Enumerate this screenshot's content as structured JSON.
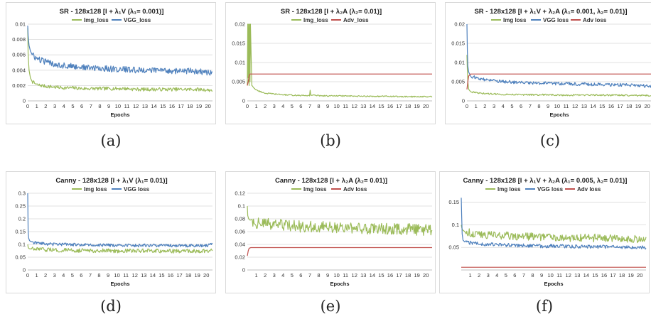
{
  "chart_data": [
    {
      "id": "a",
      "caption": "(a)",
      "type": "line",
      "title": "SR - 128x128  [I + λ₁V (λ₁= 0.001)]",
      "xlabel": "Epochs",
      "ylabel": "",
      "xlim": [
        0,
        20.5
      ],
      "ylim": [
        0,
        0.01
      ],
      "yticks": [
        0,
        0.002,
        0.004,
        0.006,
        0.008,
        0.01
      ],
      "yticklabels": [
        "0",
        "0.002",
        "0.004",
        "0.006",
        "0.008",
        "0.01"
      ],
      "xticks": [
        0,
        1,
        2,
        3,
        4,
        5,
        6,
        7,
        8,
        9,
        10,
        11,
        12,
        13,
        14,
        15,
        16,
        17,
        18,
        19,
        20
      ],
      "grid": true,
      "legend_position": "top",
      "series": [
        {
          "name": "Img_loss",
          "color": "#9bbb59",
          "x": [
            0,
            0.05,
            0.15,
            0.3,
            0.5,
            1,
            2,
            3,
            4,
            5,
            6,
            7,
            8,
            9,
            10,
            11,
            12,
            13,
            14,
            15,
            16,
            17,
            18,
            19,
            20,
            20.5
          ],
          "y": [
            0.0095,
            0.006,
            0.004,
            0.003,
            0.0025,
            0.0021,
            0.0019,
            0.0018,
            0.0017,
            0.0017,
            0.0016,
            0.0016,
            0.0016,
            0.0016,
            0.0016,
            0.0016,
            0.0015,
            0.0015,
            0.0015,
            0.0015,
            0.0015,
            0.0015,
            0.0015,
            0.0015,
            0.0014,
            0.0014
          ],
          "noise": 0.00022
        },
        {
          "name": "VGG_loss",
          "color": "#4f81bd",
          "x": [
            0,
            0.05,
            0.15,
            0.3,
            0.5,
            1,
            2,
            3,
            4,
            5,
            6,
            7,
            8,
            9,
            10,
            11,
            12,
            13,
            14,
            15,
            16,
            17,
            18,
            19,
            20,
            20.5
          ],
          "y": [
            0.0098,
            0.0085,
            0.0072,
            0.0065,
            0.006,
            0.0055,
            0.0051,
            0.0048,
            0.0046,
            0.0045,
            0.0044,
            0.0043,
            0.0042,
            0.0042,
            0.0041,
            0.0041,
            0.004,
            0.004,
            0.004,
            0.004,
            0.0039,
            0.0039,
            0.0039,
            0.0038,
            0.0037,
            0.0036
          ],
          "noise": 0.0004
        }
      ]
    },
    {
      "id": "b",
      "caption": "(b)",
      "type": "line",
      "title": "SR - 128x128  [I + λ₂A (λ₂= 0.01)]",
      "xlabel": "",
      "ylabel": "",
      "xlim": [
        0,
        20.7
      ],
      "ylim": [
        0,
        0.02
      ],
      "yticks": [
        0,
        0.005,
        0.01,
        0.015,
        0.02
      ],
      "yticklabels": [
        "0",
        "0.005",
        "0.01",
        "0.015",
        "0.02"
      ],
      "xticks": [
        0,
        1,
        2,
        3,
        4,
        5,
        6,
        7,
        8,
        9,
        10,
        11,
        12,
        13,
        14,
        15,
        16,
        17,
        18,
        19,
        20
      ],
      "grid": true,
      "legend_position": "top",
      "series": [
        {
          "name": "Img_loss",
          "color": "#9bbb59",
          "x": [
            0,
            0.05,
            0.1,
            0.15,
            0.2,
            0.25,
            0.3,
            0.35,
            0.5,
            1,
            2,
            3,
            4,
            5,
            6,
            7,
            7.05,
            7.1,
            8,
            9,
            10,
            11,
            12,
            13,
            14,
            15,
            16,
            17,
            18,
            19,
            20,
            20.7
          ],
          "y": [
            0.004,
            0.02,
            0.006,
            0.02,
            0.004,
            0.02,
            0.005,
            0.02,
            0.004,
            0.0028,
            0.002,
            0.0018,
            0.0016,
            0.0015,
            0.0014,
            0.0014,
            0.0033,
            0.0015,
            0.0014,
            0.0013,
            0.0013,
            0.0013,
            0.0012,
            0.0012,
            0.0012,
            0.0012,
            0.0012,
            0.0011,
            0.0011,
            0.0011,
            0.0011,
            0.0011
          ],
          "noise": 0.00015
        },
        {
          "name": "Adv_loss",
          "color": "#c0504d",
          "x": [
            0,
            0.1,
            0.2,
            0.3,
            20.7
          ],
          "y": [
            0.004,
            0.005,
            0.0065,
            0.007,
            0.007
          ],
          "noise": 0
        }
      ]
    },
    {
      "id": "c",
      "caption": "(c)",
      "type": "line",
      "title": "SR - 128x128  [I + λ₁V + λ₂A (λ₁= 0.001, λ₂= 0.01)]",
      "xlabel": "Epochs",
      "ylabel": "",
      "xlim": [
        0,
        20.5
      ],
      "ylim": [
        0,
        0.02
      ],
      "yticks": [
        0,
        0.005,
        0.01,
        0.015,
        0.02
      ],
      "yticklabels": [
        "0",
        "0.005",
        "0.01",
        "0.015",
        "0.02"
      ],
      "xticks": [
        0,
        1,
        2,
        3,
        4,
        5,
        6,
        7,
        8,
        9,
        10,
        11,
        12,
        13,
        14,
        15,
        16,
        17,
        18,
        19,
        20
      ],
      "grid": true,
      "legend_position": "top",
      "series": [
        {
          "name": "Img loss",
          "color": "#9bbb59",
          "x": [
            0,
            0.05,
            0.1,
            0.2,
            0.4,
            1,
            2,
            3,
            4,
            5,
            6,
            7,
            8,
            9,
            10,
            11,
            12,
            13,
            14,
            15,
            16,
            17,
            18,
            19,
            20,
            20.5
          ],
          "y": [
            0.012,
            0.008,
            0.005,
            0.003,
            0.0024,
            0.0021,
            0.0019,
            0.0018,
            0.0017,
            0.0017,
            0.0016,
            0.0016,
            0.0016,
            0.0016,
            0.0015,
            0.0015,
            0.0015,
            0.0015,
            0.0015,
            0.0015,
            0.0015,
            0.0015,
            0.0014,
            0.0014,
            0.0014,
            0.0014
          ],
          "noise": 0.0002
        },
        {
          "name": "VGG loss",
          "color": "#4f81bd",
          "x": [
            0,
            0.05,
            0.1,
            0.2,
            0.4,
            1,
            2,
            3,
            4,
            5,
            6,
            7,
            8,
            9,
            10,
            11,
            12,
            13,
            14,
            15,
            16,
            17,
            18,
            19,
            20,
            20.5
          ],
          "y": [
            0.02,
            0.013,
            0.009,
            0.0075,
            0.0065,
            0.006,
            0.0055,
            0.0052,
            0.005,
            0.0049,
            0.0048,
            0.0047,
            0.0046,
            0.0046,
            0.0045,
            0.0045,
            0.0044,
            0.0044,
            0.0043,
            0.0043,
            0.0042,
            0.0042,
            0.0041,
            0.004,
            0.0039,
            0.0038
          ],
          "noise": 0.0004
        },
        {
          "name": "Adv loss",
          "color": "#c0504d",
          "x": [
            0,
            0.1,
            0.2,
            0.4,
            20.5
          ],
          "y": [
            0.003,
            0.005,
            0.0065,
            0.007,
            0.007
          ],
          "noise": 0
        }
      ]
    },
    {
      "id": "d",
      "caption": "(d)",
      "type": "line",
      "title": "Canny - 128x128  [I + λ₁V (λ₁= 0.01)]",
      "xlabel": "Epochs",
      "ylabel": "",
      "xlim": [
        0,
        20.7
      ],
      "ylim": [
        0,
        0.3
      ],
      "yticks": [
        0,
        0.05,
        0.1,
        0.15,
        0.2,
        0.25,
        0.3
      ],
      "yticklabels": [
        "0",
        "0.05",
        "0.1",
        "0.15",
        "0.2",
        "0.25",
        "0.3"
      ],
      "xticks": [
        0,
        1,
        2,
        3,
        4,
        5,
        6,
        7,
        8,
        9,
        10,
        11,
        12,
        13,
        14,
        15,
        16,
        17,
        18,
        19,
        20
      ],
      "grid": true,
      "legend_position": "top",
      "series": [
        {
          "name": "Img loss",
          "color": "#9bbb59",
          "x": [
            0,
            0.05,
            0.1,
            0.2,
            0.4,
            1,
            2,
            3,
            4,
            5,
            6,
            7,
            8,
            9,
            10,
            11,
            12,
            13,
            14,
            15,
            16,
            17,
            18,
            19,
            20,
            20.7
          ],
          "y": [
            0.1,
            0.09,
            0.085,
            0.083,
            0.082,
            0.08,
            0.079,
            0.078,
            0.077,
            0.077,
            0.076,
            0.076,
            0.076,
            0.075,
            0.075,
            0.075,
            0.075,
            0.075,
            0.074,
            0.074,
            0.074,
            0.074,
            0.074,
            0.074,
            0.074,
            0.08
          ],
          "noise": 0.008
        },
        {
          "name": "VGG loss",
          "color": "#4f81bd",
          "x": [
            0,
            0.05,
            0.1,
            0.2,
            0.4,
            1,
            2,
            3,
            4,
            5,
            6,
            7,
            8,
            9,
            10,
            11,
            12,
            13,
            14,
            15,
            16,
            17,
            18,
            19,
            20,
            20.7
          ],
          "y": [
            0.3,
            0.15,
            0.125,
            0.115,
            0.11,
            0.105,
            0.102,
            0.1,
            0.1,
            0.099,
            0.098,
            0.098,
            0.097,
            0.097,
            0.097,
            0.096,
            0.096,
            0.096,
            0.096,
            0.096,
            0.095,
            0.095,
            0.095,
            0.095,
            0.095,
            0.1
          ],
          "noise": 0.006
        }
      ]
    },
    {
      "id": "e",
      "caption": "(e)",
      "type": "line",
      "title": "Canny - 128x128  [I + λ₂A (λ₂= 0.01)]",
      "xlabel": "Epochs",
      "ylabel": "",
      "xlim": [
        0,
        20.7
      ],
      "ylim": [
        0,
        0.12
      ],
      "yticks": [
        0,
        0.02,
        0.04,
        0.06,
        0.08,
        0.1,
        0.12
      ],
      "yticklabels": [
        "0",
        "0.02",
        "0.04",
        "0.06",
        "0.08",
        "0.1",
        "0.12"
      ],
      "xticks": [
        1,
        2,
        3,
        4,
        5,
        6,
        7,
        8,
        9,
        10,
        11,
        12,
        13,
        14,
        15,
        16,
        17,
        18,
        19,
        20
      ],
      "grid": true,
      "legend_position": "top",
      "series": [
        {
          "name": "Img loss",
          "color": "#9bbb59",
          "x": [
            0,
            0.05,
            0.15,
            0.3,
            0.6,
            1,
            2,
            3,
            4,
            5,
            6,
            7,
            8,
            9,
            10,
            11,
            12,
            13,
            14,
            15,
            16,
            17,
            18,
            19,
            20,
            20.7
          ],
          "y": [
            0.1,
            0.085,
            0.08,
            0.078,
            0.076,
            0.074,
            0.072,
            0.071,
            0.07,
            0.069,
            0.068,
            0.068,
            0.067,
            0.067,
            0.066,
            0.066,
            0.066,
            0.065,
            0.065,
            0.065,
            0.064,
            0.064,
            0.064,
            0.063,
            0.063,
            0.062
          ],
          "noise": 0.009
        },
        {
          "name": "Adv loss",
          "color": "#c0504d",
          "x": [
            0,
            0.1,
            0.2,
            0.4,
            20.7
          ],
          "y": [
            0.022,
            0.03,
            0.034,
            0.035,
            0.035
          ],
          "noise": 0
        }
      ]
    },
    {
      "id": "f",
      "caption": "(f)",
      "type": "line",
      "title": "Canny - 128x128  [I + λ₁V + λ₂A (λ₁= 0.005, λ₂= 0.01)]",
      "xlabel": "Epochs",
      "ylabel": "",
      "xlim": [
        0,
        20.7
      ],
      "ylim": [
        0,
        0.17
      ],
      "yticks": [
        0.05,
        0.1,
        0.15
      ],
      "yticklabels": [
        "0.05",
        "0.1",
        "0.15"
      ],
      "xticks": [
        1,
        2,
        3,
        4,
        5,
        6,
        7,
        8,
        9,
        10,
        11,
        12,
        13,
        14,
        15,
        16,
        17,
        18,
        19,
        20
      ],
      "grid": true,
      "legend_position": "top",
      "series": [
        {
          "name": "Img loss",
          "color": "#9bbb59",
          "x": [
            0,
            0.05,
            0.1,
            0.2,
            0.4,
            1,
            2,
            3,
            4,
            5,
            6,
            7,
            8,
            9,
            10,
            11,
            12,
            13,
            14,
            15,
            16,
            17,
            18,
            19,
            20,
            20.7
          ],
          "y": [
            0.1,
            0.095,
            0.09,
            0.088,
            0.085,
            0.082,
            0.08,
            0.078,
            0.077,
            0.076,
            0.075,
            0.075,
            0.074,
            0.074,
            0.073,
            0.073,
            0.072,
            0.072,
            0.072,
            0.071,
            0.071,
            0.07,
            0.07,
            0.069,
            0.068,
            0.067
          ],
          "noise": 0.009
        },
        {
          "name": "VGG loss",
          "color": "#4f81bd",
          "x": [
            0,
            0.05,
            0.1,
            0.2,
            0.4,
            1,
            2,
            3,
            4,
            5,
            6,
            7,
            8,
            9,
            10,
            11,
            12,
            13,
            14,
            15,
            16,
            17,
            18,
            19,
            20,
            20.7
          ],
          "y": [
            0.16,
            0.12,
            0.08,
            0.066,
            0.062,
            0.06,
            0.058,
            0.057,
            0.056,
            0.055,
            0.055,
            0.054,
            0.054,
            0.053,
            0.053,
            0.053,
            0.052,
            0.052,
            0.052,
            0.052,
            0.051,
            0.051,
            0.051,
            0.05,
            0.05,
            0.05
          ],
          "noise": 0.004
        },
        {
          "name": "Adv loss",
          "color": "#c0504d",
          "x": [
            0,
            20.7
          ],
          "y": [
            0.006,
            0.006
          ],
          "noise": 0
        }
      ]
    }
  ]
}
